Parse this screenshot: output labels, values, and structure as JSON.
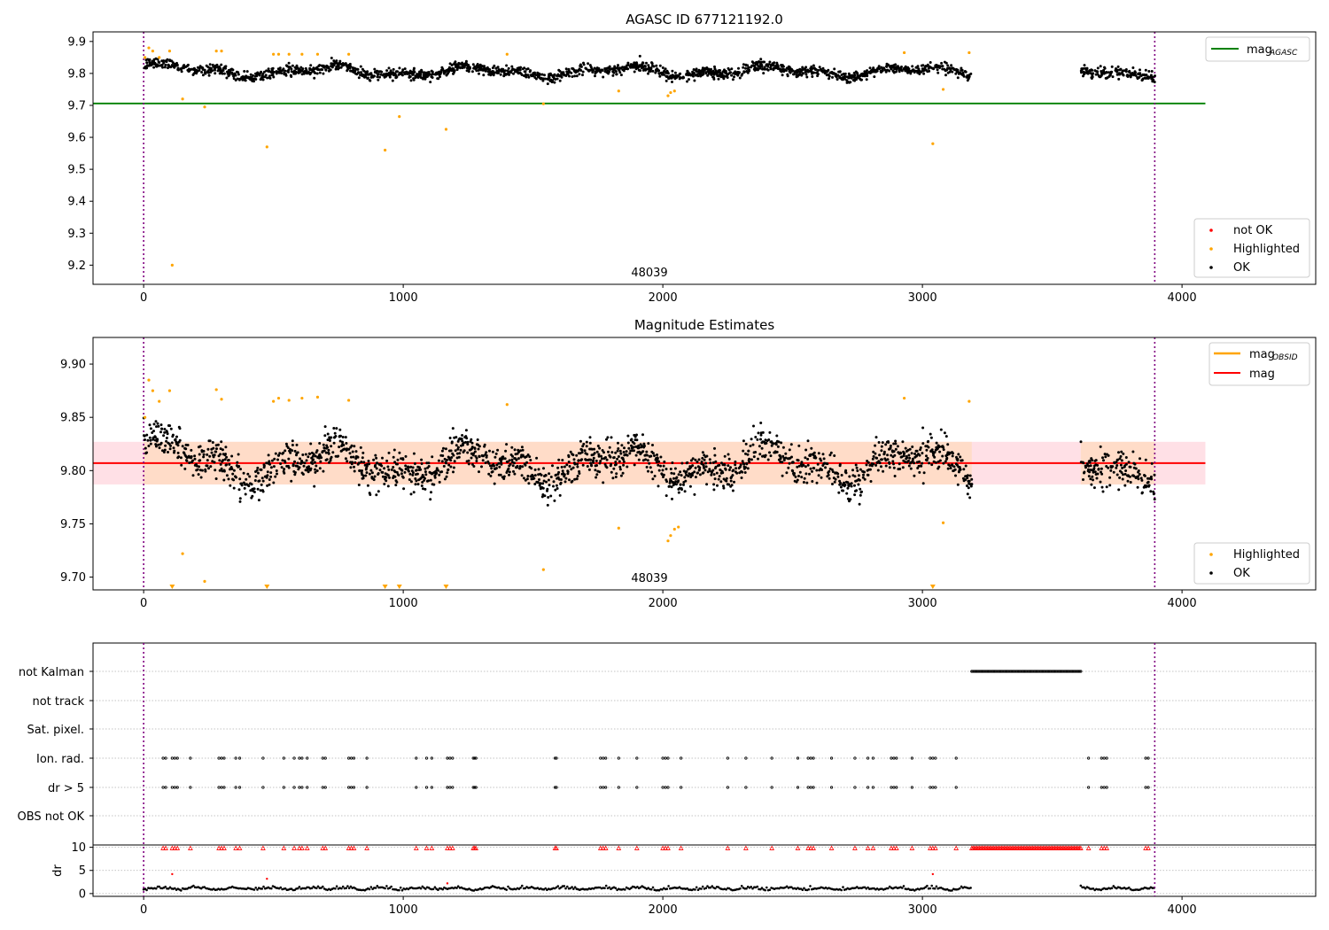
{
  "chart_data": [
    {
      "type": "scatter",
      "title": "AGASC ID 677121192.0",
      "xlim": [
        -195,
        4515
      ],
      "ylim": [
        9.14,
        9.93
      ],
      "xticks": [
        0,
        1000,
        2000,
        3000,
        4000
      ],
      "yticks": [
        9.2,
        9.3,
        9.4,
        9.5,
        9.6,
        9.7,
        9.8,
        9.9
      ],
      "annotation": "48039",
      "obsid_lines_x": [
        0,
        3895
      ],
      "ok_band": {
        "center": 9.806,
        "halfwidth": 0.022,
        "noise": 0.014
      },
      "ok_segments": [
        [
          0,
          3190,
          5
        ],
        [
          3610,
          3895,
          5
        ]
      ],
      "not_ok_points": [],
      "highlighted_points": [
        [
          5,
          9.85
        ],
        [
          20,
          9.88
        ],
        [
          35,
          9.87
        ],
        [
          60,
          9.85
        ],
        [
          100,
          9.87
        ],
        [
          110,
          9.2
        ],
        [
          150,
          9.72
        ],
        [
          235,
          9.695
        ],
        [
          280,
          9.87
        ],
        [
          300,
          9.87
        ],
        [
          475,
          9.57
        ],
        [
          500,
          9.86
        ],
        [
          520,
          9.86
        ],
        [
          560,
          9.86
        ],
        [
          610,
          9.86
        ],
        [
          670,
          9.86
        ],
        [
          790,
          9.86
        ],
        [
          930,
          9.56
        ],
        [
          985,
          9.665
        ],
        [
          1165,
          9.625
        ],
        [
          1400,
          9.86
        ],
        [
          1540,
          9.705
        ],
        [
          1830,
          9.745
        ],
        [
          2020,
          9.73
        ],
        [
          2030,
          9.74
        ],
        [
          2045,
          9.745
        ],
        [
          2930,
          9.865
        ],
        [
          3040,
          9.58
        ],
        [
          3080,
          9.75
        ],
        [
          3180,
          9.865
        ]
      ],
      "mag_agasc": {
        "value": 9.706,
        "x_range": [
          -195,
          4090
        ],
        "color": "#008000"
      },
      "legend_upper": {
        "label": "mag",
        "sub": "AGASC"
      },
      "legend_lower": [
        "not OK",
        "Highlighted",
        "OK"
      ]
    },
    {
      "type": "scatter",
      "title": "Magnitude Estimates",
      "xlim": [
        -195,
        4515
      ],
      "ylim": [
        9.688,
        9.925
      ],
      "xticks": [
        0,
        1000,
        2000,
        3000,
        4000
      ],
      "yticks": [
        9.7,
        9.75,
        9.8,
        9.85,
        9.9
      ],
      "annotation": "48039",
      "obsid_lines_x": [
        0,
        3895
      ],
      "ok_band": {
        "center": 9.806,
        "halfwidth": 0.022,
        "noise": 0.014
      },
      "ok_segments": [
        [
          0,
          3190,
          5
        ],
        [
          3610,
          3895,
          5
        ]
      ],
      "highlighted_points": [
        [
          5,
          9.85
        ],
        [
          20,
          9.885
        ],
        [
          35,
          9.875
        ],
        [
          60,
          9.865
        ],
        [
          100,
          9.875
        ],
        [
          150,
          9.722
        ],
        [
          235,
          9.696
        ],
        [
          280,
          9.876
        ],
        [
          300,
          9.867
        ],
        [
          500,
          9.865
        ],
        [
          520,
          9.868
        ],
        [
          560,
          9.866
        ],
        [
          610,
          9.868
        ],
        [
          670,
          9.869
        ],
        [
          790,
          9.866
        ],
        [
          1400,
          9.862
        ],
        [
          1540,
          9.707
        ],
        [
          1830,
          9.746
        ],
        [
          2020,
          9.734
        ],
        [
          2030,
          9.739
        ],
        [
          2045,
          9.745
        ],
        [
          2060,
          9.747
        ],
        [
          2930,
          9.868
        ],
        [
          3080,
          9.751
        ],
        [
          3180,
          9.865
        ]
      ],
      "clipped_low_x": [
        110,
        475,
        930,
        985,
        1165,
        3040
      ],
      "mag_obsid_band": {
        "low": 9.787,
        "high": 9.827,
        "x_range": [
          0,
          3190
        ],
        "color": "#ffdcc8"
      },
      "mag_band": {
        "low": 9.787,
        "high": 9.827,
        "x_range": [
          -195,
          4090
        ],
        "color": "#ffe0e6"
      },
      "mag_value": 9.807,
      "legend_upper": [
        {
          "label": "mag",
          "sub": "OBSID"
        },
        {
          "label": "mag",
          "sub": ""
        }
      ],
      "legend_lower": [
        "Highlighted",
        "OK"
      ]
    },
    {
      "type": "scatter",
      "title": "",
      "xlim": [
        -195,
        4515
      ],
      "xticks": [
        0,
        1000,
        2000,
        3000,
        4000
      ],
      "flag_labels": [
        "not Kalman",
        "not track",
        "Sat. pixel.",
        "Ion. rad.",
        "dr > 5",
        "OBS not OK"
      ],
      "not_kalman_x_range": [
        3190,
        3610
      ],
      "flag_x": [
        75,
        85,
        110,
        120,
        130,
        180,
        290,
        300,
        310,
        355,
        370,
        460,
        540,
        580,
        600,
        610,
        630,
        690,
        700,
        790,
        800,
        810,
        860,
        1050,
        1090,
        1110,
        1170,
        1180,
        1190,
        1270,
        1275,
        1280,
        1585,
        1590,
        1760,
        1770,
        1780,
        1830,
        1900,
        2000,
        2010,
        2020,
        2070,
        2250,
        2320,
        2420,
        2520,
        2560,
        2570,
        2580,
        2650,
        2740,
        2790,
        2810,
        2880,
        2890,
        2900,
        2960,
        3030,
        3040,
        3050,
        3130,
        3640,
        3690,
        3700,
        3710,
        3860,
        3870
      ],
      "dr_ylim": [
        -0.6,
        10.5
      ],
      "dr_yticks": [
        0,
        5,
        10
      ],
      "dr_ylabel": "dr",
      "dr_outliers": [
        [
          110,
          4.2
        ],
        [
          475,
          3.2
        ],
        [
          1170,
          2.2
        ],
        [
          3040,
          4.2
        ]
      ],
      "dr_segments": [
        [
          0,
          3190,
          6
        ],
        [
          3610,
          3895,
          6
        ]
      ],
      "dr_clipped_x_range": [
        3190,
        3610
      ]
    }
  ]
}
